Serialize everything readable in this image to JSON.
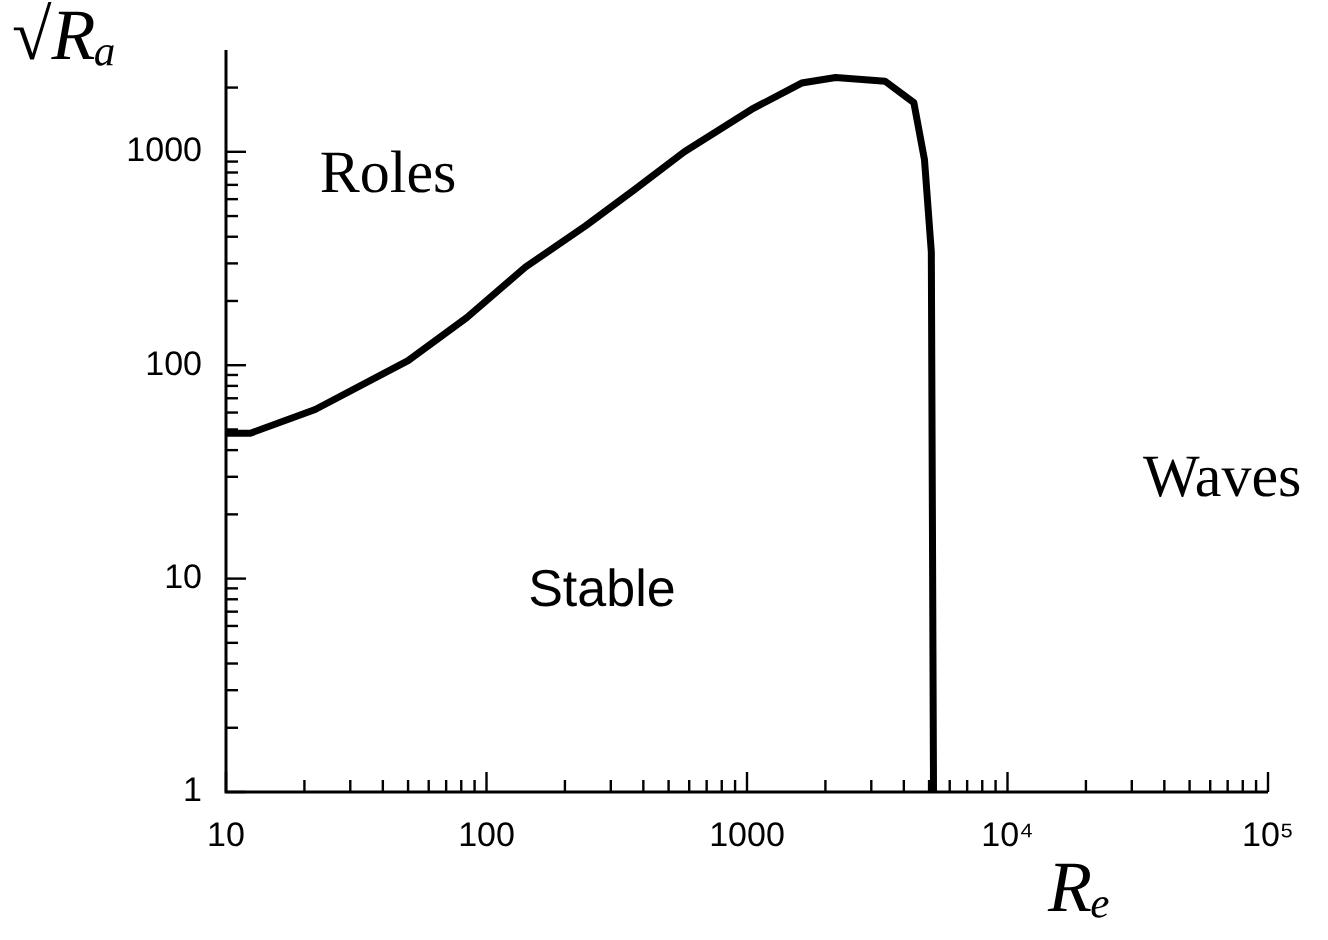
{
  "chart_data": {
    "type": "line",
    "xlabel": "Rₑ",
    "ylabel": "√Rₐ",
    "annotations": [
      "Roles",
      "Stable",
      "Waves"
    ],
    "log": "xy",
    "grid": false,
    "legend": false,
    "marker": "none",
    "line_style": "solid",
    "xlim": [
      10,
      100000
    ],
    "ylim": [
      1,
      3000
    ],
    "xticks": [
      10,
      {
        "value": 20,
        "label": null
      },
      {
        "value": 30,
        "label": null
      },
      {
        "value": 40,
        "label": null
      },
      {
        "value": 50,
        "label": null
      },
      {
        "value": 60,
        "label": null
      },
      {
        "value": 70,
        "label": null
      },
      {
        "value": 80,
        "label": null
      },
      {
        "value": 90,
        "label": null
      },
      100,
      {
        "value": 200,
        "label": null
      },
      {
        "value": 300,
        "label": null
      },
      {
        "value": 400,
        "label": null
      },
      {
        "value": 500,
        "label": null
      },
      {
        "value": 600,
        "label": null
      },
      {
        "value": 700,
        "label": null
      },
      {
        "value": 800,
        "label": null
      },
      {
        "value": 900,
        "label": null
      },
      1000,
      {
        "value": 2000,
        "label": null
      },
      {
        "value": 3000,
        "label": null
      },
      {
        "value": 4000,
        "label": null
      },
      {
        "value": 5000,
        "label": null
      },
      {
        "value": 6000,
        "label": null
      },
      {
        "value": 7000,
        "label": null
      },
      {
        "value": 8000,
        "label": null
      },
      {
        "value": 9000,
        "label": null
      },
      {
        "value": 10000,
        "label": "10⁴"
      },
      {
        "value": 20000,
        "label": null
      },
      {
        "value": 30000,
        "label": null
      },
      {
        "value": 40000,
        "label": null
      },
      {
        "value": 50000,
        "label": null
      },
      {
        "value": 60000,
        "label": null
      },
      {
        "value": 70000,
        "label": null
      },
      {
        "value": 80000,
        "label": null
      },
      {
        "value": 90000,
        "label": null
      },
      {
        "value": 100000,
        "label": "10⁵"
      }
    ],
    "yticks": [
      1,
      {
        "value": 2,
        "label": null
      },
      {
        "value": 3,
        "label": null
      },
      {
        "value": 4,
        "label": null
      },
      {
        "value": 5,
        "label": null
      },
      {
        "value": 6,
        "label": null
      },
      {
        "value": 7,
        "label": null
      },
      {
        "value": 8,
        "label": null
      },
      {
        "value": 9,
        "label": null
      },
      10,
      {
        "value": 20,
        "label": null
      },
      {
        "value": 30,
        "label": null
      },
      {
        "value": 40,
        "label": null
      },
      {
        "value": 50,
        "label": null
      },
      {
        "value": 60,
        "label": null
      },
      {
        "value": 70,
        "label": null
      },
      {
        "value": 80,
        "label": null
      },
      {
        "value": 90,
        "label": null
      },
      100,
      {
        "value": 200,
        "label": null
      },
      {
        "value": 300,
        "label": null
      },
      {
        "value": 400,
        "label": null
      },
      {
        "value": 500,
        "label": null
      },
      {
        "value": 600,
        "label": null
      },
      {
        "value": 700,
        "label": null
      },
      {
        "value": 800,
        "label": null
      },
      {
        "value": 900,
        "label": null
      },
      1000,
      {
        "value": 2000,
        "label": null
      }
    ],
    "series": [
      {
        "color": "#000000",
        "x": [
          10,
          12.4,
          22,
          50,
          84,
          141,
          240,
          370,
          575,
          1040,
          1620,
          2190,
          3390,
          4370,
          4800,
          5100,
          5200
        ],
        "values": [
          48,
          48,
          62,
          105,
          167,
          288,
          450,
          665,
          1000,
          1580,
          2100,
          2230,
          2140,
          1700,
          920,
          340,
          1
        ]
      }
    ]
  }
}
